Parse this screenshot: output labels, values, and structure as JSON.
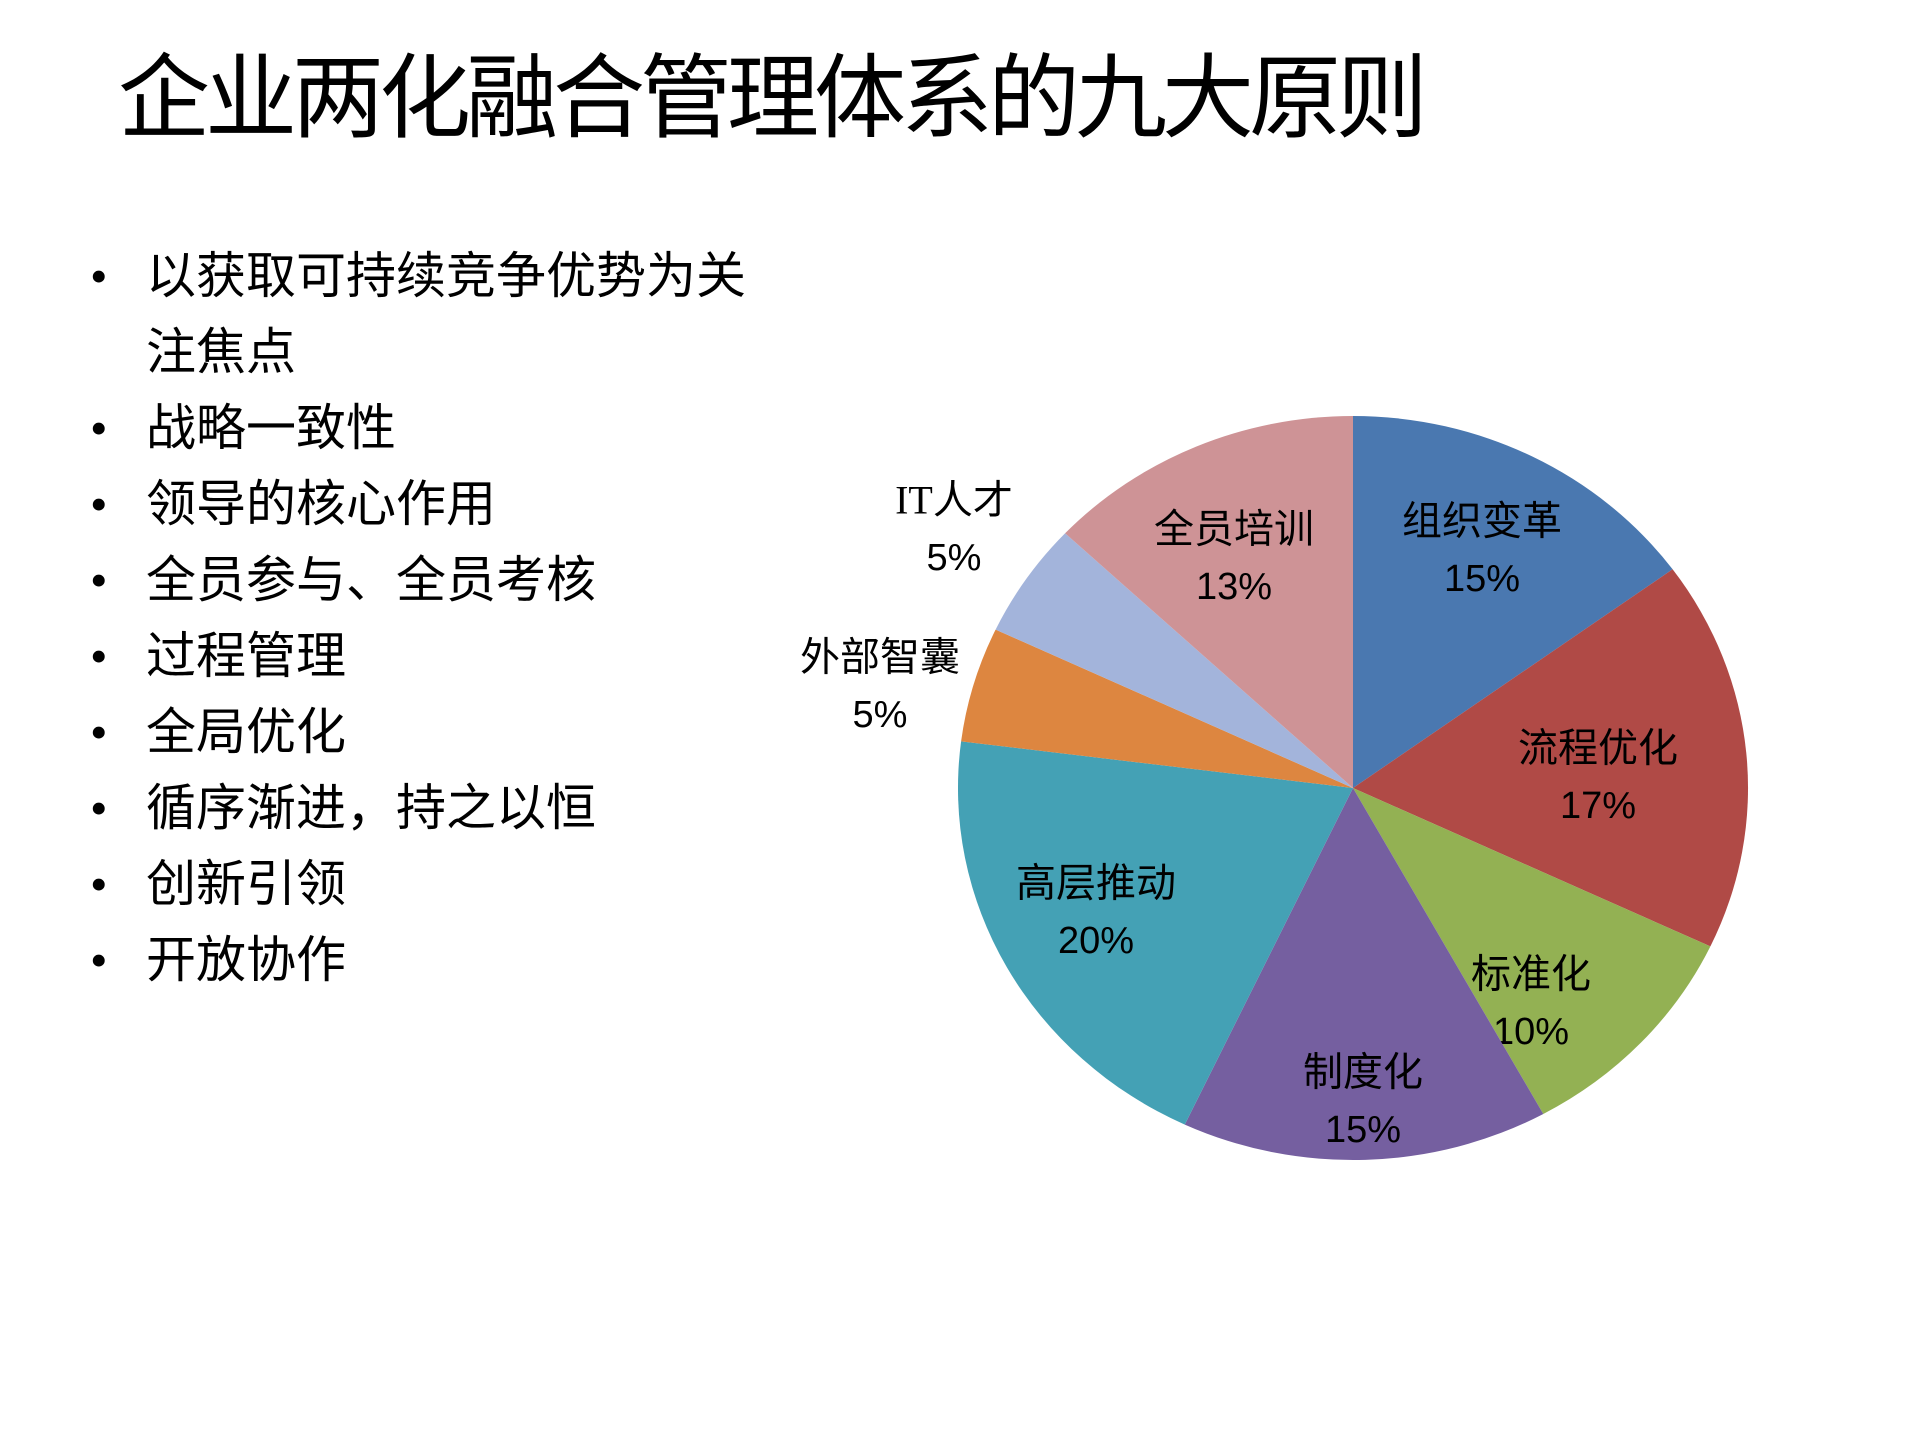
{
  "slide": {
    "title": "企业两化融合管理体系的九大原则",
    "bullets": [
      "以获取可持续竞争优势为关注焦点",
      "战略一致性",
      "领导的核心作用",
      "全员参与、全员考核",
      "过程管理",
      "全局优化",
      "循序渐进，持之以恒",
      "创新引领",
      "开放协作"
    ]
  },
  "chart_data": {
    "type": "pie",
    "categories": [
      "组织变革",
      "流程优化",
      "标准化",
      "制度化",
      "高层推动",
      "外部智囊",
      "IT人才",
      "全员培训"
    ],
    "values": [
      15,
      17,
      10,
      15,
      20,
      5,
      5,
      13
    ],
    "data_labels": [
      "15%",
      "17%",
      "10%",
      "15%",
      "20%",
      "5%",
      "5%",
      "13%"
    ],
    "colors": [
      "#4A78B0",
      "#B04A46",
      "#93B153",
      "#755FA0",
      "#44A1B5",
      "#DD8640",
      "#A3B4DB",
      "#CE9396"
    ],
    "start_angle_deg": 0,
    "direction": "clockwise",
    "legend": "none",
    "grid": false,
    "label_layout": [
      {
        "placement": "inside",
        "angle_deg": 27,
        "radius_frac": 0.72
      },
      {
        "placement": "inside",
        "angle_deg": 87,
        "radius_frac": 0.62
      },
      {
        "placement": "inside",
        "angle_deg": 142,
        "radius_frac": 0.73
      },
      {
        "placement": "inside",
        "angle_deg": 178.2,
        "radius_frac": 0.84
      },
      {
        "placement": "inside",
        "angle_deg": 243,
        "radius_frac": 0.73
      },
      {
        "placement": "outside",
        "angle_deg": 283,
        "radius_frac": 1.23
      },
      {
        "placement": "outside",
        "angle_deg": 304.7,
        "radius_frac": 1.23
      },
      {
        "placement": "inside",
        "angle_deg": 334,
        "radius_frac": 0.69
      }
    ]
  }
}
